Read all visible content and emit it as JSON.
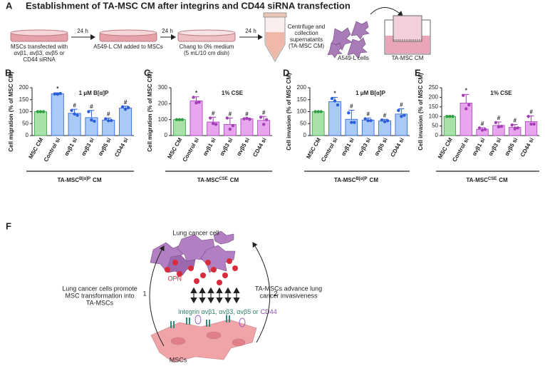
{
  "panel_a": {
    "label": "A",
    "title": "Establishment of TA-MSC CM after integrins and CD44 siRNA transfection",
    "steps": [
      [
        "MSCs transfected with",
        "αvβ1, αvβ3, αvβ5 or",
        "CD44 siRNA"
      ],
      [
        "A549-L CM added to MSCs"
      ],
      [
        "Chang to 0% medium",
        "(5 mL/10 cm dish)"
      ],
      [
        "Centrifuge and",
        "collection",
        "supernatants",
        "(TA-MSC CM)"
      ]
    ],
    "arrows": [
      "24 h",
      "24 h",
      "24 h"
    ],
    "cells": "A549-L cells",
    "insert": "TA-MSC CM"
  },
  "chart_data": [
    {
      "type": "bar",
      "label": "B",
      "title": "1 μM B[α]P",
      "ylabel": "Cell migration (% of MSC CM)",
      "categories": [
        "MSC CM",
        "Control si",
        "αvβ1 si",
        "αvβ3 si",
        "αvβ5 si",
        "CD44 si"
      ],
      "values": [
        100,
        175,
        93,
        75,
        65,
        115
      ],
      "errors": [
        0,
        4,
        17,
        30,
        8,
        8
      ],
      "points": [
        [
          100,
          100,
          100
        ],
        [
          174,
          173,
          176
        ],
        [
          105,
          90,
          85
        ],
        [
          100,
          65,
          60
        ],
        [
          70,
          62,
          63
        ],
        [
          120,
          110,
          117
        ]
      ],
      "annotations": [
        null,
        "*",
        "#",
        "#",
        "#",
        "#"
      ],
      "colors": [
        "#a8e2a8",
        "#a9c9f7",
        "#a9c9f7",
        "#a9c9f7",
        "#a9c9f7",
        "#a9c9f7"
      ],
      "edge_colors": [
        "#2f9e44",
        "#2b5fd9",
        "#2b5fd9",
        "#2b5fd9",
        "#2b5fd9",
        "#2b5fd9"
      ],
      "group_label": {
        "prefix": "TA-MSC",
        "superscript": "B[α]P",
        "suffix": "CM"
      },
      "ylim": [
        0,
        200
      ],
      "yticks": [
        0,
        50,
        100,
        150,
        200
      ]
    },
    {
      "type": "bar",
      "label": "C",
      "title": "1% CSE",
      "ylabel": "Cell migration (% of MSC CM)",
      "categories": [
        "MSC CM",
        "Control si",
        "αvβ1 si",
        "αvβ3 si",
        "αvβ5 si",
        "CD44 si"
      ],
      "values": [
        100,
        218,
        85,
        70,
        105,
        95
      ],
      "errors": [
        0,
        25,
        30,
        40,
        5,
        25
      ],
      "points": [
        [
          100,
          100,
          100
        ],
        [
          240,
          205,
          210
        ],
        [
          110,
          75,
          70
        ],
        [
          110,
          40,
          62
        ],
        [
          105,
          108,
          102
        ],
        [
          115,
          70,
          100
        ]
      ],
      "annotations": [
        null,
        "*",
        "#",
        "#",
        "#",
        "#"
      ],
      "colors": [
        "#a8e2a8",
        "#e8a6ef",
        "#e8a6ef",
        "#e8a6ef",
        "#e8a6ef",
        "#e8a6ef"
      ],
      "edge_colors": [
        "#2f9e44",
        "#a43fb8",
        "#a43fb8",
        "#a43fb8",
        "#a43fb8",
        "#a43fb8"
      ],
      "group_label": {
        "prefix": "TA-MSC",
        "superscript": "CSE",
        "suffix": "CM"
      },
      "ylim": [
        0,
        300
      ],
      "yticks": [
        0,
        100,
        200,
        300
      ]
    },
    {
      "type": "bar",
      "label": "D",
      "title": "1 μM B[α]P",
      "ylabel": "Cell invasion (% of MSC CM)",
      "categories": [
        "MSC CM",
        "Control si",
        "αvβ1 si",
        "αvβ3 si",
        "αvβ5 si",
        "CD44 si"
      ],
      "values": [
        100,
        142,
        68,
        65,
        62,
        90
      ],
      "errors": [
        0,
        18,
        38,
        8,
        6,
        22
      ],
      "points": [
        [
          100,
          100,
          100
        ],
        [
          155,
          145,
          128
        ],
        [
          95,
          55,
          55
        ],
        [
          70,
          62,
          63
        ],
        [
          65,
          58,
          62
        ],
        [
          105,
          80,
          85
        ]
      ],
      "annotations": [
        null,
        "*",
        "#",
        "#",
        "#",
        "#"
      ],
      "colors": [
        "#a8e2a8",
        "#a9c9f7",
        "#a9c9f7",
        "#a9c9f7",
        "#a9c9f7",
        "#a9c9f7"
      ],
      "edge_colors": [
        "#2f9e44",
        "#2b5fd9",
        "#2b5fd9",
        "#2b5fd9",
        "#2b5fd9",
        "#2b5fd9"
      ],
      "group_label": {
        "prefix": "TA-MSC",
        "superscript": "B[α]P",
        "suffix": "CM"
      },
      "ylim": [
        0,
        200
      ],
      "yticks": [
        0,
        50,
        100,
        150,
        200
      ]
    },
    {
      "type": "bar",
      "label": "E",
      "title": "1% CSE",
      "ylabel": "Cell invasion (% of MSC CM)",
      "categories": [
        "MSC CM",
        "Control si",
        "αvβ1 si",
        "αvβ3 si",
        "αvβ5 si",
        "CD44 si"
      ],
      "values": [
        100,
        170,
        33,
        53,
        43,
        73
      ],
      "errors": [
        0,
        45,
        8,
        18,
        15,
        30
      ],
      "points": [
        [
          100,
          100,
          100
        ],
        [
          210,
          140,
          160
        ],
        [
          40,
          28,
          32
        ],
        [
          68,
          45,
          48
        ],
        [
          55,
          35,
          40
        ],
        [
          100,
          60,
          60
        ]
      ],
      "annotations": [
        null,
        "*",
        "#",
        "#",
        "#",
        "#"
      ],
      "colors": [
        "#a8e2a8",
        "#e8a6ef",
        "#e8a6ef",
        "#e8a6ef",
        "#e8a6ef",
        "#e8a6ef"
      ],
      "edge_colors": [
        "#2f9e44",
        "#a43fb8",
        "#a43fb8",
        "#a43fb8",
        "#a43fb8",
        "#a43fb8"
      ],
      "group_label": {
        "prefix": "TA-MSC",
        "superscript": "CSE",
        "suffix": "CM"
      },
      "ylim": [
        0,
        250
      ],
      "yticks": [
        0,
        50,
        100,
        150,
        200,
        250
      ]
    }
  ],
  "panel_f": {
    "label": "F",
    "cancer_cell": "Lung cancer cell",
    "opn": "OPN",
    "integrin": "Integrin αvβ1, αvβ3, αvβ5 or",
    "cd44": "CD44",
    "step1_number": "1",
    "step1": [
      "Lung cancer cells promote",
      "MSC transformation into",
      "TA-MSCs"
    ],
    "step2_number": "2",
    "step2": [
      "TA-MSCs advance lung",
      "cancer invasiveness"
    ],
    "msc": "MSCs"
  }
}
